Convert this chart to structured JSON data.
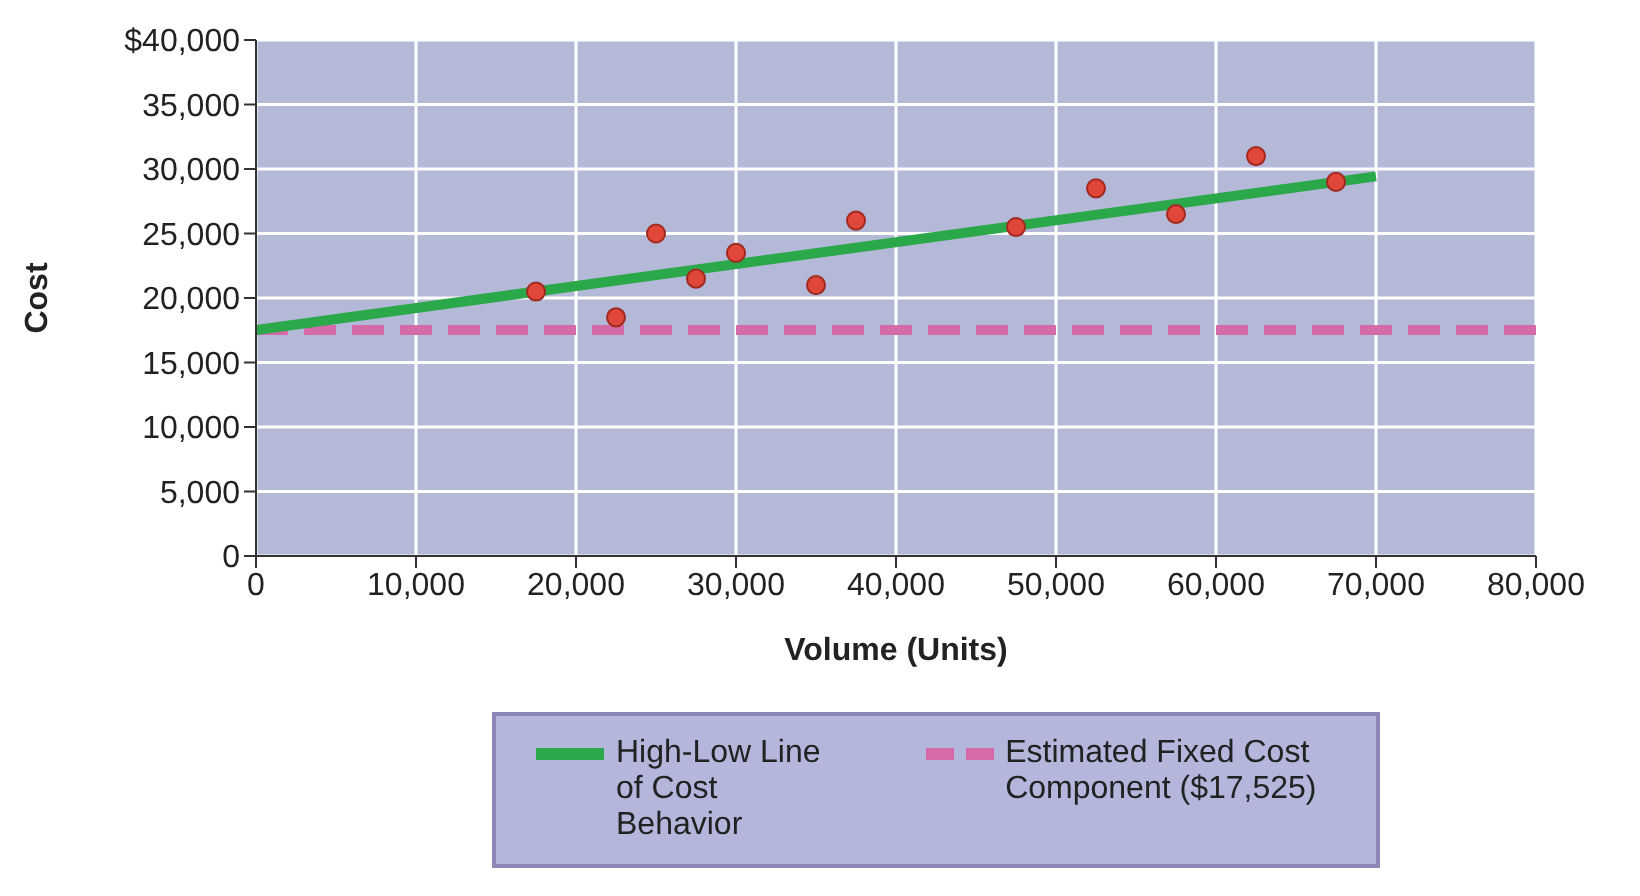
{
  "chart_data": {
    "type": "scatter",
    "xlabel": "Volume (Units)",
    "ylabel": "Cost",
    "xlim": [
      0,
      80000
    ],
    "xticks": [
      {
        "value": 0,
        "label": "0"
      },
      {
        "value": 10000,
        "label": "10,000"
      },
      {
        "value": 20000,
        "label": "20,000"
      },
      {
        "value": 30000,
        "label": "30,000"
      },
      {
        "value": 40000,
        "label": "40,000"
      },
      {
        "value": 50000,
        "label": "50,000"
      },
      {
        "value": 60000,
        "label": "60,000"
      },
      {
        "value": 70000,
        "label": "70,000"
      },
      {
        "value": 80000,
        "label": "80,000"
      }
    ],
    "ylim": [
      0,
      40000
    ],
    "yticks": [
      {
        "value": 0,
        "label": "0"
      },
      {
        "value": 5000,
        "label": "5,000"
      },
      {
        "value": 10000,
        "label": "10,000"
      },
      {
        "value": 15000,
        "label": "15,000"
      },
      {
        "value": 20000,
        "label": "20,000"
      },
      {
        "value": 25000,
        "label": "25,000"
      },
      {
        "value": 30000,
        "label": "30,000"
      },
      {
        "value": 35000,
        "label": "35,000"
      },
      {
        "value": 40000,
        "label": "$40,000"
      }
    ],
    "grid": true,
    "legend": "bottom",
    "series": [
      {
        "marker": "circle",
        "color": "#e0463a",
        "x": [
          17500,
          22500,
          25000,
          27500,
          30000,
          35000,
          37500,
          47500,
          52500,
          57500,
          62500,
          67500
        ],
        "values": [
          20500,
          18500,
          25000,
          21500,
          23500,
          21000,
          26000,
          25500,
          28500,
          26500,
          31000,
          29000
        ]
      },
      {
        "type": "line",
        "name": "High-Low Line of Cost Behavior",
        "color": "#2aa84a",
        "x": [
          0,
          70000
        ],
        "values": [
          17525,
          29425
        ]
      }
    ],
    "ref_lines": [
      {
        "axis": "y",
        "value": 17525,
        "label": "Estimated Fixed Cost Component ($17,525)",
        "color": "#d46aa8",
        "line_style": "dashed"
      }
    ]
  }
}
